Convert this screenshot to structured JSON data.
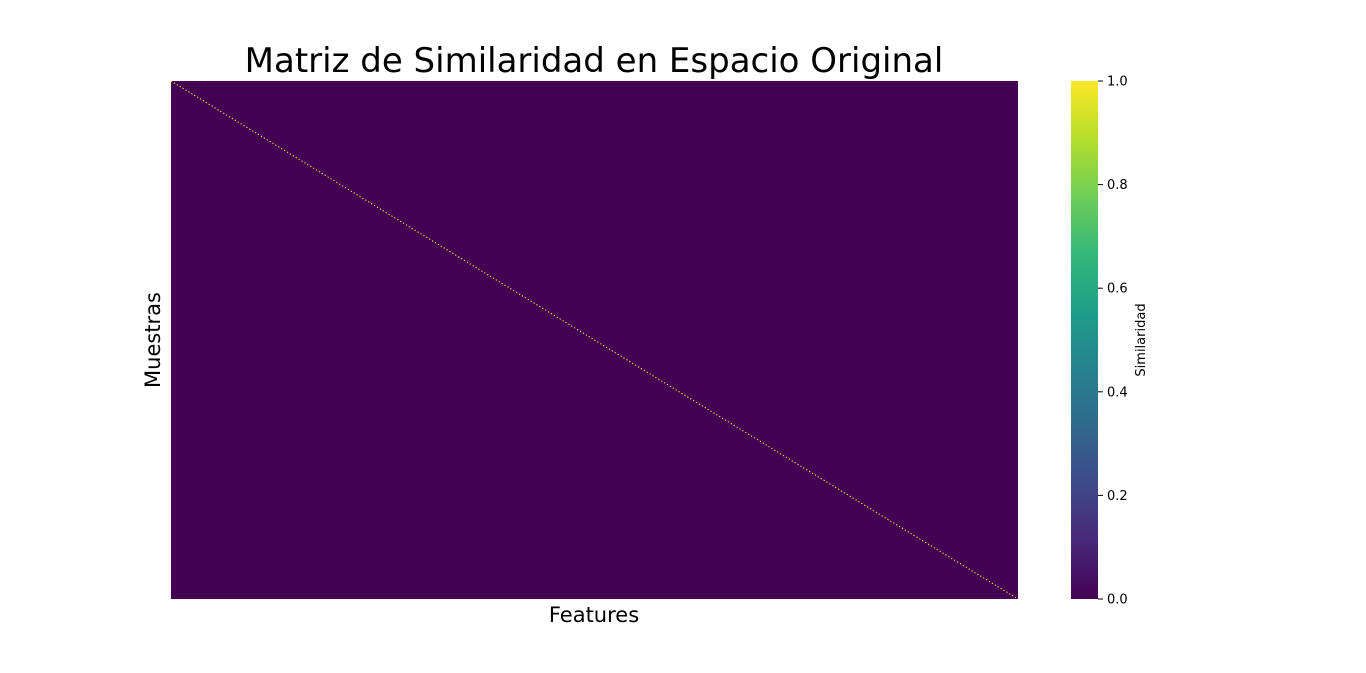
{
  "chart_data": {
    "type": "heatmap",
    "title": "Matriz de Similaridad en Espacio Original",
    "xlabel": "Features",
    "ylabel": "Muestras",
    "colormap": "viridis",
    "pattern": "identity",
    "diagonal_value": 1.0,
    "off_diagonal_value": 0.0,
    "x_ticks_visible": false,
    "y_ticks_visible": false,
    "colorbar": {
      "label": "Similaridad",
      "range": [
        0.0,
        1.0
      ],
      "ticks": [
        {
          "value": 0.0,
          "label": "0.0"
        },
        {
          "value": 0.2,
          "label": "0.2"
        },
        {
          "value": 0.4,
          "label": "0.4"
        },
        {
          "value": 0.6,
          "label": "0.6"
        },
        {
          "value": 0.8,
          "label": "0.8"
        },
        {
          "value": 1.0,
          "label": "1.0"
        }
      ],
      "gradient_colors": [
        "#440154",
        "#482878",
        "#3e4a89",
        "#31688e",
        "#26828e",
        "#1f9e89",
        "#35b779",
        "#6ece58",
        "#b5de2b",
        "#fde725"
      ]
    }
  }
}
